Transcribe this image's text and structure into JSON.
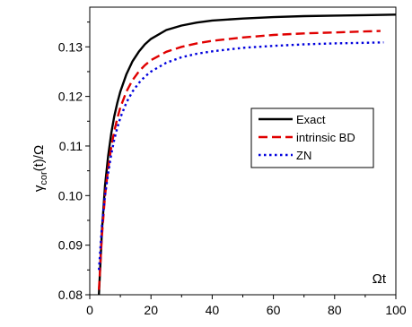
{
  "chart_data": {
    "type": "line",
    "xlabel": "Ωt",
    "ylabel": "γ",
    "ylabel_sub": "cor",
    "ylabel_suffix": "(t)/Ω",
    "xlim": [
      0,
      100
    ],
    "ylim": [
      0.08,
      0.138
    ],
    "x_ticks": [
      "0",
      "20",
      "40",
      "60",
      "80",
      "100"
    ],
    "x_tick_values": [
      0,
      20,
      40,
      60,
      80,
      100
    ],
    "y_ticks": [
      "0.08",
      "0.09",
      "0.10",
      "0.11",
      "0.12",
      "0.13"
    ],
    "y_tick_values": [
      0.08,
      0.09,
      0.1,
      0.11,
      0.12,
      0.13
    ],
    "legend_position": "right-middle",
    "series": [
      {
        "name": "Exact",
        "color": "#000000",
        "style": "solid",
        "x": [
          3,
          4,
          5,
          6,
          7,
          8,
          9,
          10,
          12,
          14,
          16,
          18,
          20,
          25,
          30,
          35,
          40,
          50,
          60,
          70,
          80,
          90,
          100
        ],
        "y": [
          0.08,
          0.093,
          0.102,
          0.108,
          0.1125,
          0.116,
          0.1187,
          0.121,
          0.1245,
          0.1271,
          0.129,
          0.1305,
          0.1316,
          0.1334,
          0.1343,
          0.1349,
          0.1353,
          0.1357,
          0.136,
          0.1362,
          0.1363,
          0.1364,
          0.1365
        ]
      },
      {
        "name": "intrinsic BD",
        "color": "#e00000",
        "style": "dashed",
        "x": [
          3,
          4,
          5,
          6,
          7,
          8,
          9,
          10,
          12,
          14,
          16,
          18,
          20,
          25,
          30,
          35,
          40,
          50,
          60,
          70,
          80,
          90,
          95
        ],
        "y": [
          0.081,
          0.092,
          0.1,
          0.1055,
          0.1097,
          0.113,
          0.1156,
          0.1178,
          0.121,
          0.1233,
          0.125,
          0.1263,
          0.1273,
          0.129,
          0.13,
          0.1307,
          0.1312,
          0.1319,
          0.1324,
          0.1327,
          0.1329,
          0.1331,
          0.1332
        ]
      },
      {
        "name": "ZN",
        "color": "#0000dd",
        "style": "dotted",
        "x": [
          3,
          4,
          5,
          6,
          7,
          8,
          9,
          10,
          12,
          14,
          16,
          18,
          20,
          25,
          30,
          35,
          40,
          50,
          60,
          70,
          80,
          90,
          96
        ],
        "y": [
          0.085,
          0.094,
          0.1,
          0.1045,
          0.1083,
          0.1113,
          0.1137,
          0.1157,
          0.1188,
          0.121,
          0.1227,
          0.124,
          0.125,
          0.1268,
          0.1279,
          0.1286,
          0.1291,
          0.1298,
          0.1302,
          0.1305,
          0.1307,
          0.1308,
          0.1309
        ]
      }
    ]
  }
}
